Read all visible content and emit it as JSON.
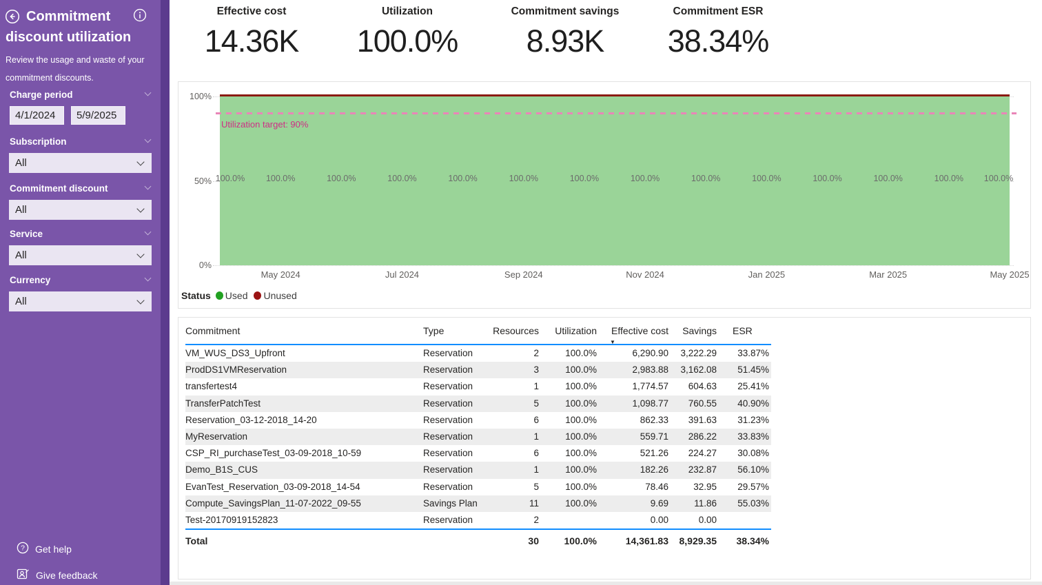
{
  "sidebar": {
    "title": "Commitment discount utilization",
    "subtitle": "Review the usage and waste of your commitment discounts.",
    "filters": [
      {
        "label": "Charge period",
        "type": "date-range",
        "start": "4/1/2024",
        "end": "5/9/2025"
      },
      {
        "label": "Subscription",
        "value": "All"
      },
      {
        "label": "Commitment discount",
        "value": "All"
      },
      {
        "label": "Service",
        "value": "All"
      },
      {
        "label": "Currency",
        "value": "All"
      }
    ],
    "footer": [
      {
        "label": "Get help"
      },
      {
        "label": "Give feedback"
      }
    ]
  },
  "kpis": [
    {
      "label": "Effective cost",
      "value": "14.36K"
    },
    {
      "label": "Utilization",
      "value": "100.0%"
    },
    {
      "label": "Commitment savings",
      "value": "8.93K"
    },
    {
      "label": "Commitment ESR",
      "value": "38.34%"
    }
  ],
  "chart_data": {
    "type": "area",
    "title": "",
    "x": [
      "Apr 2024",
      "May 2024",
      "Jun 2024",
      "Jul 2024",
      "Aug 2024",
      "Sep 2024",
      "Oct 2024",
      "Nov 2024",
      "Dec 2024",
      "Jan 2025",
      "Feb 2025",
      "Mar 2025",
      "Apr 2025",
      "May 2025"
    ],
    "series": [
      {
        "name": "Used",
        "color": "#9ad498",
        "values": [
          100,
          100,
          100,
          100,
          100,
          100,
          100,
          100,
          100,
          100,
          100,
          100,
          100,
          100
        ]
      },
      {
        "name": "Unused",
        "color": "#8a1a10",
        "values": [
          0,
          0,
          0,
          0,
          0,
          0,
          0,
          0,
          0,
          0,
          0,
          0,
          0,
          0
        ]
      }
    ],
    "data_labels": [
      "100.0%",
      "100.0%",
      "100.0%",
      "100.0%",
      "100.0%",
      "100.0%",
      "100.0%",
      "100.0%",
      "100.0%",
      "100.0%",
      "100.0%",
      "100.0%",
      "100.0%",
      "100.0%"
    ],
    "target_line": {
      "label": "Utilization target: 90%",
      "value": 90,
      "text_color": "#ce2e85",
      "line_color": "#e986b8"
    },
    "y_ticks": [
      "100%",
      "50%",
      "0%"
    ],
    "x_ticks": [
      "May 2024",
      "Jul 2024",
      "Sep 2024",
      "Nov 2024",
      "Jan 2025",
      "Mar 2025",
      "May 2025"
    ],
    "ylim": [
      0,
      100
    ],
    "grid": true,
    "legend": {
      "title": "Status",
      "position": "bottom-left",
      "items": [
        {
          "label": "Used",
          "color": "#21a121"
        },
        {
          "label": "Unused",
          "color": "#9b1414"
        }
      ]
    }
  },
  "table": {
    "columns": [
      {
        "label": "Commitment",
        "align": "left"
      },
      {
        "label": "Type",
        "align": "left"
      },
      {
        "label": "Resources",
        "align": "right"
      },
      {
        "label": "Utilization",
        "align": "right"
      },
      {
        "label": "Effective cost",
        "align": "right",
        "sorted": "desc"
      },
      {
        "label": "Savings",
        "align": "right"
      },
      {
        "label": "ESR",
        "align": "esr"
      }
    ],
    "rows": [
      [
        "VM_WUS_DS3_Upfront",
        "Reservation",
        "2",
        "100.0%",
        "6,290.90",
        "3,222.29",
        "33.87%"
      ],
      [
        "ProdDS1VMReservation",
        "Reservation",
        "3",
        "100.0%",
        "2,983.88",
        "3,162.08",
        "51.45%"
      ],
      [
        "transfertest4",
        "Reservation",
        "1",
        "100.0%",
        "1,774.57",
        "604.63",
        "25.41%"
      ],
      [
        "TransferPatchTest",
        "Reservation",
        "5",
        "100.0%",
        "1,098.77",
        "760.55",
        "40.90%"
      ],
      [
        "Reservation_03-12-2018_14-20",
        "Reservation",
        "6",
        "100.0%",
        "862.33",
        "391.63",
        "31.23%"
      ],
      [
        "MyReservation",
        "Reservation",
        "1",
        "100.0%",
        "559.71",
        "286.22",
        "33.83%"
      ],
      [
        "CSP_RI_purchaseTest_03-09-2018_10-59",
        "Reservation",
        "6",
        "100.0%",
        "521.26",
        "224.27",
        "30.08%"
      ],
      [
        "Demo_B1S_CUS",
        "Reservation",
        "1",
        "100.0%",
        "182.26",
        "232.87",
        "56.10%"
      ],
      [
        "EvanTest_Reservation_03-09-2018_14-54",
        "Reservation",
        "5",
        "100.0%",
        "78.46",
        "32.95",
        "29.57%"
      ],
      [
        "Compute_SavingsPlan_11-07-2022_09-55",
        "Savings Plan",
        "11",
        "100.0%",
        "9.69",
        "11.86",
        "55.03%"
      ],
      [
        "Test-20170919152823",
        "Reservation",
        "2",
        "",
        "0.00",
        "0.00",
        ""
      ]
    ],
    "total": [
      "Total",
      "",
      "30",
      "100.0%",
      "14,361.83",
      "8,929.35",
      "38.34%"
    ]
  },
  "colors": {
    "sidebar": "#7a55a9",
    "sidebar_scrollbar": "#5c3b8e",
    "area_used": "#9ad498",
    "unused_line": "#8a1a10",
    "target_pink": "#e986b8",
    "table_accent_blue": "#118DFF",
    "alt_row": "#ededed"
  }
}
